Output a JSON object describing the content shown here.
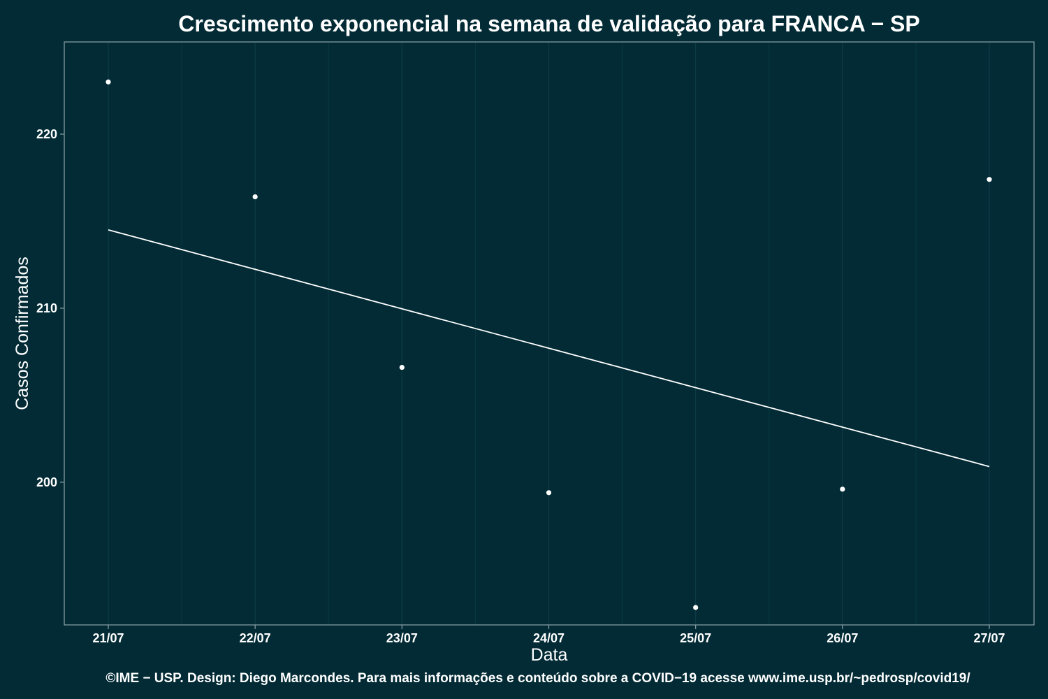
{
  "chart_data": {
    "type": "scatter",
    "title": "Crescimento exponencial na semana de validação para FRANCA − SP",
    "xlabel": "Data",
    "ylabel": "Casos Confirmados",
    "caption": "©IME − USP. Design: Diego Marcondes. Para mais informações e conteúdo sobre a COVID−19 acesse www.ime.usp.br/~pedrosp/covid19/",
    "categories": [
      "21/07",
      "22/07",
      "23/07",
      "24/07",
      "25/07",
      "26/07",
      "27/07"
    ],
    "points": [
      223,
      216.4,
      206.6,
      199.4,
      192.8,
      199.6,
      217.4
    ],
    "trend": {
      "start": 214.5,
      "end": 200.9
    },
    "y_ticks": [
      200,
      210,
      220
    ],
    "ylim": [
      191.8,
      225.3
    ],
    "grid": true,
    "legend": "none",
    "colors": {
      "background": "#022b35",
      "foreground": "#ffffff",
      "grid": "#0d3c47",
      "axis": "#8ea3a8"
    }
  }
}
